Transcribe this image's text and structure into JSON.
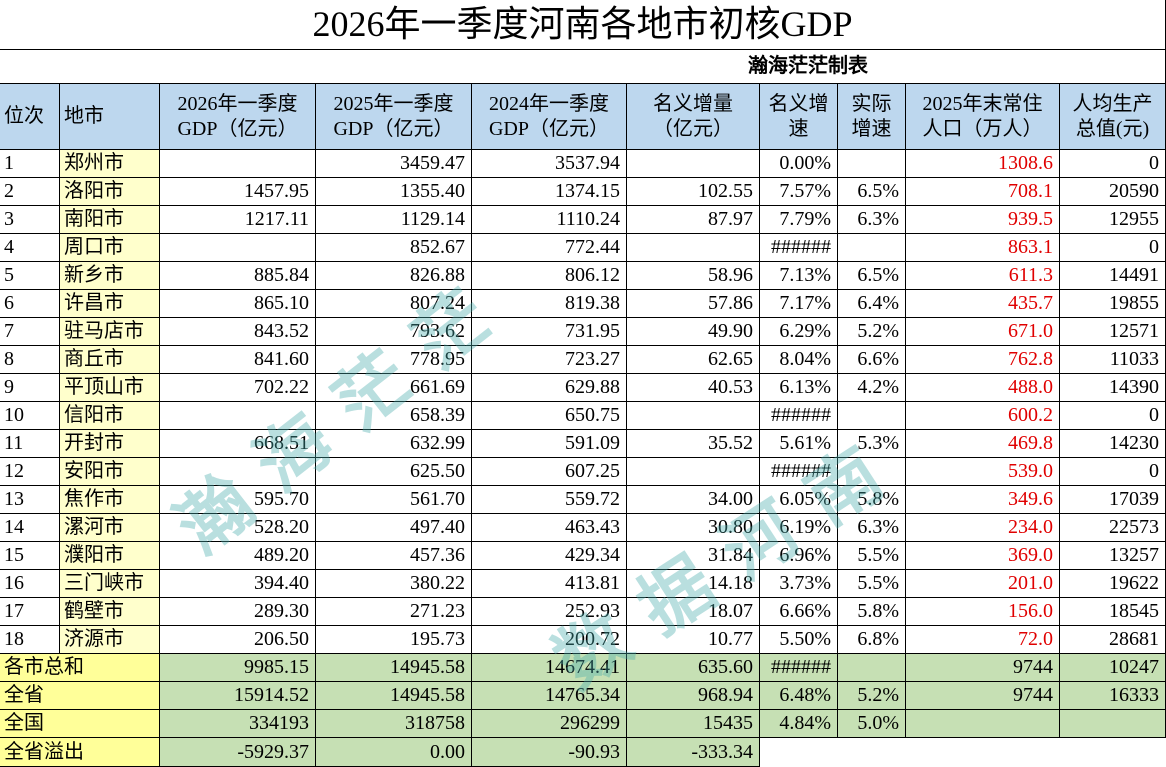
{
  "title": "2026年一季度河南各地市初核GDP",
  "credit": "瀚海茫茫制表",
  "header": [
    "位次",
    "地市",
    "2026年一季度\nGDP（亿元）",
    "2025年一季度\nGDP（亿元）",
    "2024年一季度\nGDP（亿元）",
    "名义增量\n（亿元）",
    "名义增\n速",
    "实际\n增速",
    "2025年末常住\n人口（万人）",
    "人均生产\n总值(元)"
  ],
  "rows": [
    [
      "1",
      "郑州市",
      null,
      "3459.47",
      "3537.94",
      null,
      "0.00%",
      null,
      "1308.6",
      "0"
    ],
    [
      "2",
      "洛阳市",
      "1457.95",
      "1355.40",
      "1374.15",
      "102.55",
      "7.57%",
      "6.5%",
      "708.1",
      "20590"
    ],
    [
      "3",
      "南阳市",
      "1217.11",
      "1129.14",
      "1110.24",
      "87.97",
      "7.79%",
      "6.3%",
      "939.5",
      "12955"
    ],
    [
      "4",
      "周口市",
      null,
      "852.67",
      "772.44",
      null,
      "######",
      null,
      "863.1",
      "0"
    ],
    [
      "5",
      "新乡市",
      "885.84",
      "826.88",
      "806.12",
      "58.96",
      "7.13%",
      "6.5%",
      "611.3",
      "14491"
    ],
    [
      "6",
      "许昌市",
      "865.10",
      "807.24",
      "819.38",
      "57.86",
      "7.17%",
      "6.4%",
      "435.7",
      "19855"
    ],
    [
      "7",
      "驻马店市",
      "843.52",
      "793.62",
      "731.95",
      "49.90",
      "6.29%",
      "5.2%",
      "671.0",
      "12571"
    ],
    [
      "8",
      "商丘市",
      "841.60",
      "778.95",
      "723.27",
      "62.65",
      "8.04%",
      "6.6%",
      "762.8",
      "11033"
    ],
    [
      "9",
      "平顶山市",
      "702.22",
      "661.69",
      "629.88",
      "40.53",
      "6.13%",
      "4.2%",
      "488.0",
      "14390"
    ],
    [
      "10",
      "信阳市",
      null,
      "658.39",
      "650.75",
      null,
      "######",
      null,
      "600.2",
      "0"
    ],
    [
      "11",
      "开封市",
      "668.51",
      "632.99",
      "591.09",
      "35.52",
      "5.61%",
      "5.3%",
      "469.8",
      "14230"
    ],
    [
      "12",
      "安阳市",
      null,
      "625.50",
      "607.25",
      null,
      "######",
      null,
      "539.0",
      "0"
    ],
    [
      "13",
      "焦作市",
      "595.70",
      "561.70",
      "559.72",
      "34.00",
      "6.05%",
      "5.8%",
      "349.6",
      "17039"
    ],
    [
      "14",
      "漯河市",
      "528.20",
      "497.40",
      "463.43",
      "30.80",
      "6.19%",
      "6.3%",
      "234.0",
      "22573"
    ],
    [
      "15",
      "濮阳市",
      "489.20",
      "457.36",
      "429.34",
      "31.84",
      "6.96%",
      "5.5%",
      "369.0",
      "13257"
    ],
    [
      "16",
      "三门峡市",
      "394.40",
      "380.22",
      "413.81",
      "14.18",
      "3.73%",
      "5.5%",
      "201.0",
      "19622"
    ],
    [
      "17",
      "鹤壁市",
      "289.30",
      "271.23",
      "252.93",
      "18.07",
      "6.66%",
      "5.8%",
      "156.0",
      "18545"
    ],
    [
      "18",
      "济源市",
      "206.50",
      "195.73",
      "200.72",
      "10.77",
      "5.50%",
      "6.8%",
      "72.0",
      "28681"
    ]
  ],
  "summary": [
    {
      "label": "各市总和",
      "cells": [
        "9985.15",
        "14945.58",
        "14674.41",
        "635.60",
        "######",
        null,
        "9744",
        "10247"
      ]
    },
    {
      "label": "全省",
      "cells": [
        "15914.52",
        "14945.58",
        "14765.34",
        "968.94",
        "6.48%",
        "5.2%",
        "9744",
        "16333"
      ]
    },
    {
      "label": "全国",
      "cells": [
        "334193",
        "318758",
        "296299",
        "15435",
        "4.84%",
        "5.0%",
        null,
        null
      ]
    },
    {
      "label": "全省溢出",
      "cells": [
        "-5929.37",
        "0.00",
        "-90.93",
        "-333.34"
      ]
    }
  ],
  "watermarks": [
    "瀚海茫茫",
    "数据河南"
  ]
}
